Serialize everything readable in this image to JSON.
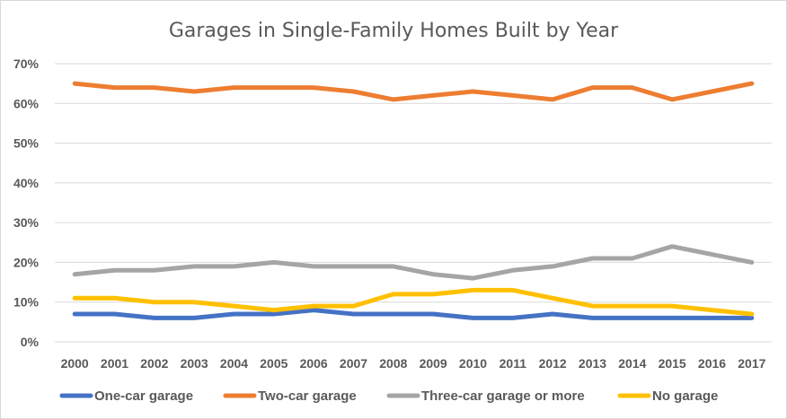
{
  "chart_data": {
    "type": "line",
    "title": "Garages in Single-Family Homes Built by Year",
    "xlabel": "",
    "ylabel": "",
    "categories": [
      "2000",
      "2001",
      "2002",
      "2003",
      "2004",
      "2005",
      "2006",
      "2007",
      "2008",
      "2009",
      "2010",
      "2011",
      "2012",
      "2013",
      "2014",
      "2015",
      "2016",
      "2017"
    ],
    "y_ticks": [
      "0%",
      "10%",
      "20%",
      "30%",
      "40%",
      "50%",
      "60%",
      "70%"
    ],
    "ylim": [
      0,
      70
    ],
    "grid": "horizontal",
    "legend_position": "bottom",
    "series": [
      {
        "name": "One-car garage",
        "color": "#4472C4",
        "values": [
          7,
          7,
          6,
          6,
          7,
          7,
          8,
          7,
          7,
          7,
          6,
          6,
          7,
          6,
          6,
          6,
          6,
          6
        ]
      },
      {
        "name": "Two-car garage",
        "color": "#ED7D31",
        "values": [
          65,
          64,
          64,
          63,
          64,
          64,
          64,
          63,
          61,
          62,
          63,
          62,
          61,
          64,
          64,
          61,
          63,
          65
        ]
      },
      {
        "name": "Three-car garage or more",
        "color": "#A5A5A5",
        "values": [
          17,
          18,
          18,
          19,
          19,
          20,
          19,
          19,
          19,
          17,
          16,
          18,
          19,
          21,
          21,
          24,
          22,
          20
        ]
      },
      {
        "name": "No garage",
        "color": "#FFC000",
        "values": [
          11,
          11,
          10,
          10,
          9,
          8,
          9,
          9,
          12,
          12,
          13,
          13,
          11,
          9,
          9,
          9,
          8,
          7
        ]
      }
    ]
  }
}
